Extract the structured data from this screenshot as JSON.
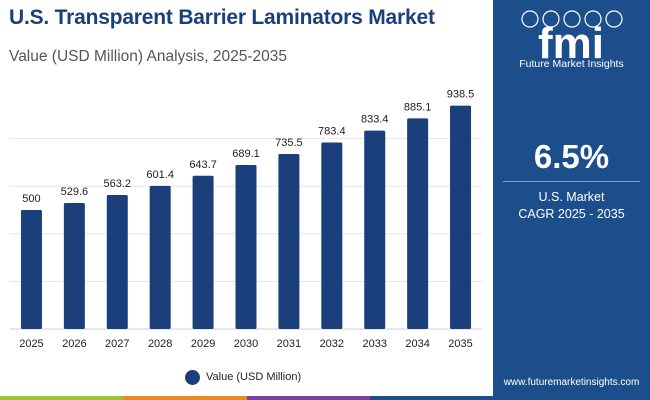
{
  "header": {
    "title": "U.S. Transparent Barrier Laminators Market",
    "subtitle": "Value (USD Million) Analysis, 2025-2035"
  },
  "panel": {
    "brand": "Future Market Insights",
    "cagr_value": "6.5%",
    "cagr_label_1": "U.S. Market",
    "cagr_label_2": "CAGR 2025 - 2035",
    "website": "www.futuremarketinsights.com",
    "logo_text": "fmi"
  },
  "legend": {
    "label": "Value (USD Million)"
  },
  "colors": {
    "bar": "#1a3f7a",
    "panel": "#1d4e8c",
    "title": "#1a3f7a",
    "bottom_stripes": [
      "#9dc42c",
      "#f08a1c",
      "#7b3fa0",
      "#1d4e8c"
    ]
  },
  "chart_data": {
    "type": "bar",
    "categories": [
      "2025",
      "2026",
      "2027",
      "2028",
      "2029",
      "2030",
      "2031",
      "2032",
      "2033",
      "2034",
      "2035"
    ],
    "series": [
      {
        "name": "Value (USD Million)",
        "values": [
          500,
          529.6,
          563.2,
          601.4,
          643.7,
          689.1,
          735.5,
          783.4,
          833.4,
          885.1,
          938.5
        ]
      }
    ],
    "value_labels": [
      "500",
      "529.6",
      "563.2",
      "601.4",
      "643.7",
      "689.1",
      "735.5",
      "783.4",
      "833.4",
      "885.1",
      "938.5"
    ],
    "title": "U.S. Transparent Barrier Laminators Market",
    "subtitle": "Value (USD Million) Analysis, 2025-2035",
    "xlabel": "",
    "ylabel": "",
    "ylim": [
      0,
      1000
    ],
    "grid": true,
    "legend_position": "bottom-center"
  }
}
